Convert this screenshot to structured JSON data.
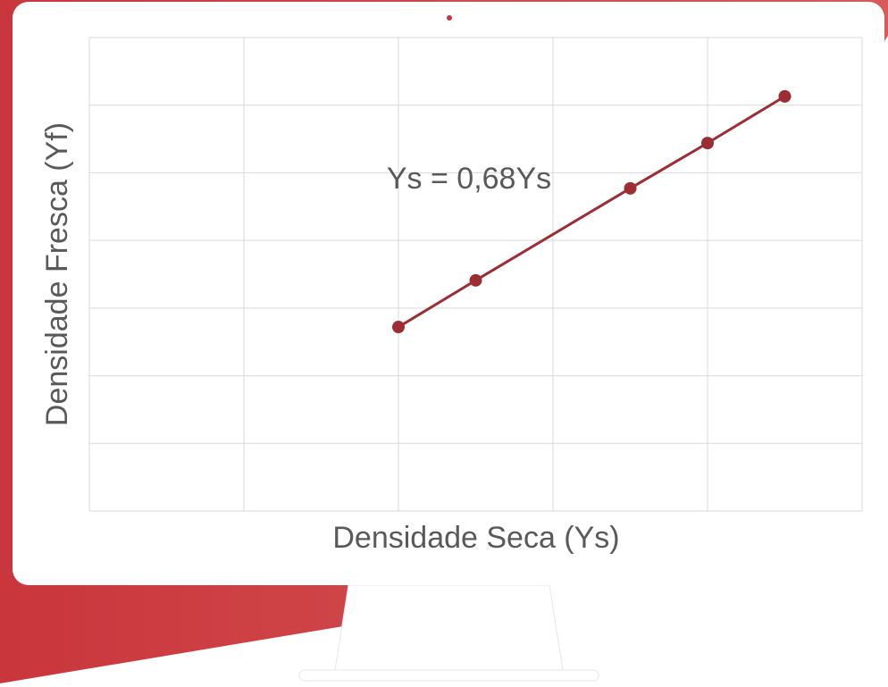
{
  "chart_data": {
    "type": "line",
    "xlabel": "Densidade Seca (Ys)",
    "ylabel": "Densidade Fresca (Yf)",
    "annotation": "Ys = 0,68Ys",
    "x": [
      2.0,
      2.5,
      3.5,
      4.0,
      4.5
    ],
    "series": [
      {
        "color": "#9b2d33",
        "values": [
          2.72,
          3.41,
          4.77,
          5.44,
          6.13
        ]
      }
    ],
    "xlim": [
      0,
      5
    ],
    "xticks": [
      0,
      1,
      2,
      3,
      4,
      5
    ],
    "ylim": [
      0,
      7
    ],
    "yticks": [
      0,
      1,
      2,
      3,
      4,
      5,
      6,
      7
    ],
    "grid": true
  }
}
